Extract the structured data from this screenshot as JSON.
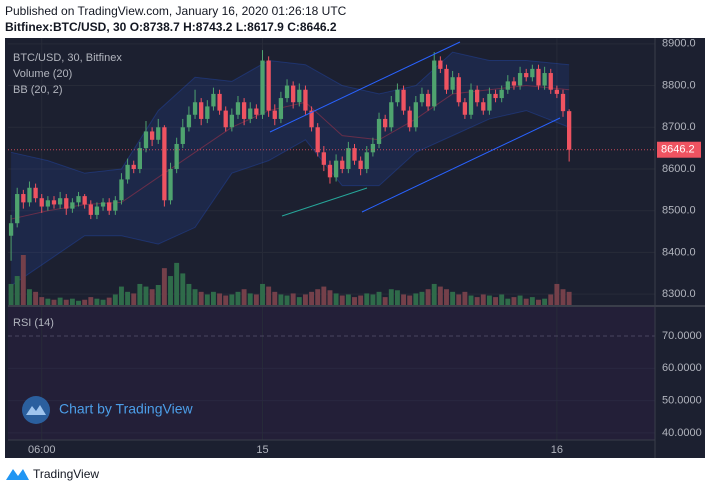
{
  "header": {
    "published": "Published on TradingView.com, January 16, 2020 01:26:18 UTC",
    "symbol": "Bitfinex:BTC/USD, 30",
    "ohlc_labels": [
      "O:",
      "H:",
      "L:",
      "C:"
    ]
  },
  "chart_data": [
    {
      "type": "candlestick",
      "name": "BTC/USD, 30, Bitfinex",
      "up_color": "#4fa36f",
      "down_color": "#ef5361",
      "open": [
        8440,
        8470,
        8540,
        8520,
        8555,
        8530,
        8510,
        8525,
        8515,
        8530,
        8505,
        8520,
        8535,
        8515,
        8490,
        8510,
        8520,
        8500,
        8525,
        8575,
        8610,
        8600,
        8650,
        8690,
        8670,
        8700,
        8525,
        8600,
        8660,
        8700,
        8730,
        8760,
        8720,
        8750,
        8780,
        8740,
        8700,
        8730,
        8760,
        8720,
        8745,
        8730,
        8860,
        8740,
        8720,
        8770,
        8800,
        8760,
        8790,
        8740,
        8700,
        8640,
        8610,
        8580,
        8620,
        8600,
        8650,
        8620,
        8600,
        8640,
        8660,
        8720,
        8700,
        8760,
        8790,
        8740,
        8700,
        8760,
        8780,
        8750,
        8860,
        8840,
        8790,
        8820,
        8760,
        8730,
        8790,
        8760,
        8740,
        8780,
        8770,
        8790,
        8810,
        8800,
        8830,
        8820,
        8840,
        8800,
        8830,
        8790,
        8780,
        8738.7
      ],
      "high": [
        8490,
        8555,
        8550,
        8570,
        8565,
        8540,
        8535,
        8535,
        8545,
        8540,
        8530,
        8545,
        8540,
        8525,
        8520,
        8530,
        8530,
        8535,
        8590,
        8625,
        8620,
        8665,
        8715,
        8700,
        8720,
        8705,
        8615,
        8675,
        8720,
        8750,
        8790,
        8770,
        8765,
        8795,
        8790,
        8750,
        8745,
        8775,
        8770,
        8760,
        8755,
        8885,
        8870,
        8755,
        8785,
        8815,
        8810,
        8805,
        8800,
        8750,
        8710,
        8655,
        8620,
        8635,
        8630,
        8665,
        8660,
        8630,
        8655,
        8675,
        8735,
        8730,
        8775,
        8805,
        8800,
        8750,
        8775,
        8795,
        8790,
        8880,
        8870,
        8850,
        8835,
        8830,
        8770,
        8805,
        8800,
        8770,
        8795,
        8790,
        8800,
        8825,
        8820,
        8845,
        8840,
        8850,
        8850,
        8845,
        8840,
        8800,
        8790,
        8743.2
      ],
      "low": [
        8380,
        8460,
        8505,
        8510,
        8520,
        8495,
        8500,
        8505,
        8505,
        8490,
        8495,
        8510,
        8505,
        8480,
        8480,
        8500,
        8490,
        8490,
        8515,
        8565,
        8590,
        8590,
        8640,
        8655,
        8660,
        8510,
        8515,
        8590,
        8650,
        8690,
        8720,
        8705,
        8710,
        8740,
        8730,
        8690,
        8690,
        8720,
        8705,
        8710,
        8720,
        8720,
        8725,
        8705,
        8710,
        8760,
        8745,
        8750,
        8730,
        8690,
        8630,
        8595,
        8565,
        8570,
        8590,
        8590,
        8610,
        8585,
        8590,
        8630,
        8650,
        8690,
        8690,
        8750,
        8730,
        8690,
        8690,
        8750,
        8740,
        8740,
        8830,
        8780,
        8780,
        8750,
        8720,
        8720,
        8750,
        8730,
        8730,
        8760,
        8760,
        8780,
        8790,
        8790,
        8810,
        8810,
        8790,
        8790,
        8780,
        8770,
        8725,
        8617.9
      ],
      "close": [
        8470,
        8540,
        8520,
        8555,
        8530,
        8510,
        8525,
        8515,
        8530,
        8505,
        8520,
        8535,
        8515,
        8490,
        8510,
        8520,
        8500,
        8525,
        8575,
        8610,
        8600,
        8650,
        8690,
        8670,
        8700,
        8525,
        8600,
        8660,
        8700,
        8730,
        8760,
        8720,
        8750,
        8780,
        8740,
        8700,
        8730,
        8760,
        8720,
        8745,
        8730,
        8860,
        8740,
        8720,
        8770,
        8800,
        8760,
        8790,
        8740,
        8700,
        8640,
        8610,
        8580,
        8620,
        8600,
        8650,
        8620,
        8600,
        8640,
        8660,
        8720,
        8700,
        8760,
        8790,
        8740,
        8700,
        8760,
        8780,
        8750,
        8860,
        8840,
        8790,
        8820,
        8760,
        8730,
        8790,
        8760,
        8740,
        8780,
        8770,
        8790,
        8810,
        8800,
        8830,
        8820,
        8840,
        8800,
        8830,
        8790,
        8780,
        8738.7,
        8646.2
      ],
      "volume": {
        "name": "Volume (20)",
        "values": [
          40,
          55,
          95,
          30,
          25,
          15,
          12,
          10,
          14,
          10,
          12,
          8,
          10,
          15,
          12,
          10,
          14,
          20,
          35,
          25,
          22,
          40,
          35,
          30,
          38,
          70,
          55,
          80,
          60,
          40,
          30,
          25,
          20,
          25,
          22,
          18,
          20,
          25,
          30,
          22,
          20,
          40,
          35,
          25,
          20,
          18,
          22,
          15,
          20,
          25,
          30,
          35,
          28,
          22,
          18,
          20,
          15,
          18,
          22,
          20,
          25,
          15,
          30,
          28,
          20,
          18,
          22,
          25,
          30,
          40,
          35,
          30,
          25,
          20,
          25,
          18,
          15,
          20,
          18,
          15,
          20,
          12,
          15,
          18,
          12,
          15,
          10,
          12,
          20,
          40,
          30,
          25
        ]
      },
      "bb": {
        "name": "BB (20, 2)",
        "color": "#2962ff",
        "x": [
          0,
          6,
          12,
          18,
          24,
          30,
          36,
          42,
          48,
          54,
          60,
          66,
          72,
          78,
          84,
          91
        ],
        "upper": [
          8640,
          8620,
          8590,
          8600,
          8740,
          8820,
          8810,
          8860,
          8850,
          8800,
          8780,
          8800,
          8880,
          8860,
          8860,
          8850
        ],
        "basis": [
          8480,
          8500,
          8515,
          8520,
          8580,
          8640,
          8700,
          8740,
          8760,
          8680,
          8670,
          8720,
          8780,
          8790,
          8800,
          8790
        ],
        "lower": [
          8320,
          8380,
          8440,
          8440,
          8420,
          8460,
          8590,
          8620,
          8670,
          8560,
          8560,
          8640,
          8680,
          8720,
          8740,
          8700
        ]
      },
      "xlim": [
        -0.5,
        105
      ],
      "xticks": [
        {
          "value": 5,
          "label": "06:00"
        },
        {
          "value": 41,
          "label": "15"
        },
        {
          "value": 89,
          "label": "16"
        }
      ],
      "ylim": [
        8274,
        8914
      ],
      "yticks": [
        {
          "value": 8900,
          "label": "8900.0"
        },
        {
          "value": 8800,
          "label": "8800.0"
        },
        {
          "value": 8700,
          "label": "8700.0"
        },
        {
          "value": 8600,
          "label": "8600.0"
        },
        {
          "value": 8500,
          "label": "8500.0"
        },
        {
          "value": 8400,
          "label": "8400.0"
        },
        {
          "value": 8300,
          "label": "8300.0"
        }
      ],
      "grid": true
    },
    {
      "type": "rsi",
      "title": "RSI (14)",
      "ylim": [
        37.8,
        79
      ],
      "yticks": [
        {
          "value": 70,
          "label": "70.0000"
        },
        {
          "value": 60,
          "label": "60.0000"
        },
        {
          "value": 50,
          "label": "50.0000"
        },
        {
          "value": 40,
          "label": "40.0000"
        }
      ]
    }
  ],
  "watermark": "Chart by TradingView",
  "footer": "TradingView"
}
